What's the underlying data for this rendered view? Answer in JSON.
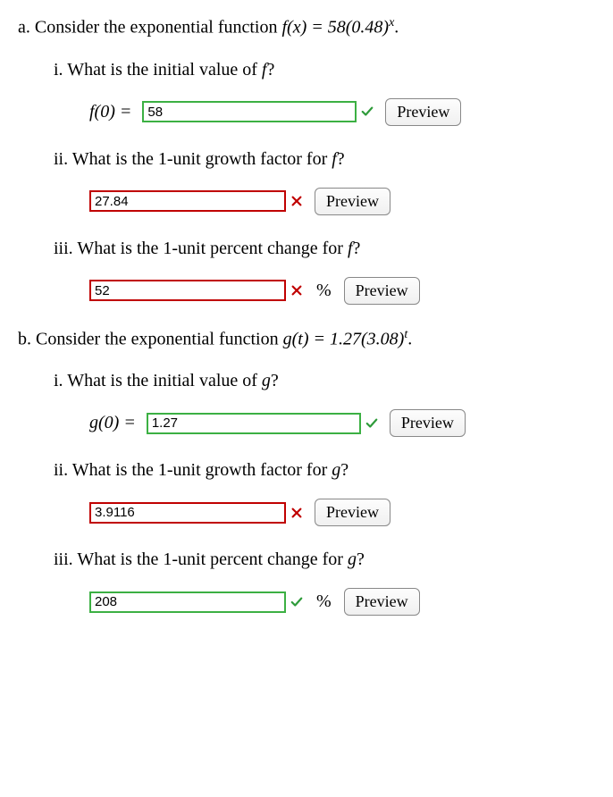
{
  "problems": {
    "a": {
      "label": "a.",
      "intro_pre": "Consider the exponential function ",
      "intro_fn": "f(x) = 58(0.48)",
      "intro_sup": "x",
      "intro_post": ".",
      "items": {
        "i": {
          "label": "i.",
          "question_pre": "What is the initial value of ",
          "question_fn": "f",
          "question_post": "?",
          "prefix": "f(0) = ",
          "value": "58",
          "status": "correct",
          "has_percent": false,
          "input_width": 240,
          "preview": "Preview"
        },
        "ii": {
          "label": "ii.",
          "question_pre": "What is the 1-unit growth factor for ",
          "question_fn": "f",
          "question_post": "?",
          "prefix": "",
          "value": "27.84",
          "status": "incorrect",
          "has_percent": false,
          "input_width": 220,
          "preview": "Preview"
        },
        "iii": {
          "label": "iii.",
          "question_pre": "What is the 1-unit percent change for ",
          "question_fn": "f",
          "question_post": "?",
          "prefix": "",
          "value": "52",
          "status": "incorrect",
          "has_percent": true,
          "input_width": 220,
          "preview": "Preview"
        }
      }
    },
    "b": {
      "label": "b.",
      "intro_pre": "Consider the exponential function ",
      "intro_fn": "g(t) = 1.27(3.08)",
      "intro_sup": "t",
      "intro_post": ".",
      "items": {
        "i": {
          "label": "i.",
          "question_pre": "What is the initial value of ",
          "question_fn": "g",
          "question_post": "?",
          "prefix": "g(0) = ",
          "value": "1.27",
          "status": "correct",
          "has_percent": false,
          "input_width": 240,
          "preview": "Preview"
        },
        "ii": {
          "label": "ii.",
          "question_pre": "What is the 1-unit growth factor for ",
          "question_fn": "g",
          "question_post": "?",
          "prefix": "",
          "value": "3.9116",
          "status": "incorrect",
          "has_percent": false,
          "input_width": 220,
          "preview": "Preview"
        },
        "iii": {
          "label": "iii.",
          "question_pre": "What is the 1-unit percent change for ",
          "question_fn": "g",
          "question_post": "?",
          "prefix": "",
          "value": "208",
          "status": "correct",
          "has_percent": true,
          "input_width": 220,
          "preview": "Preview"
        }
      }
    }
  },
  "colors": {
    "correct_border": "#3cb043",
    "incorrect_border": "#c00000",
    "check_color": "#2e9b3a",
    "cross_color": "#c00000"
  },
  "percent_symbol": "%"
}
